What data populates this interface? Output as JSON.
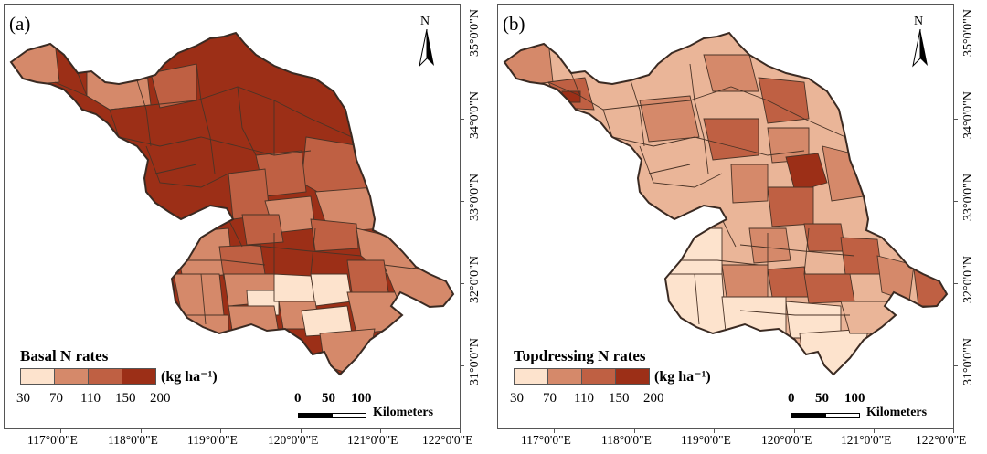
{
  "colors": {
    "c1": "#fde3cd",
    "c2": "#d5896a",
    "c3": "#bf6043",
    "c4": "#9c2f17",
    "border": "#4a3326"
  },
  "panels": [
    {
      "label": "(a)",
      "legend_title": "Basal N rates",
      "legend_unit": "(kg ha⁻¹)",
      "legend_ticks": [
        "30",
        "70",
        "110",
        "150",
        "200"
      ],
      "north": "N",
      "scale_numbers": [
        "0",
        "50",
        "100"
      ],
      "scale_unit": "Kilometers",
      "lat_labels": [
        "35°0'0\"N",
        "34°0'0\"N",
        "33°0'0\"N",
        "32°0'0\"N",
        "31°0'0\"N"
      ],
      "lon_labels": [
        "117°0'0\"E",
        "118°0'0\"E",
        "119°0'0\"E",
        "120°0'0\"E",
        "121°0'0\"E",
        "122°0'0\"E"
      ]
    },
    {
      "label": "(b)",
      "legend_title": "Topdressing N rates",
      "legend_unit": "(kg ha⁻¹)",
      "legend_ticks": [
        "30",
        "70",
        "110",
        "150",
        "200"
      ],
      "north": "N",
      "scale_numbers": [
        "0",
        "50",
        "100"
      ],
      "scale_unit": "Kilometers",
      "lat_labels": [
        "35°0'0\"N",
        "34°0'0\"N",
        "33°0'0\"N",
        "32°0'0\"N",
        "31°0'0\"N"
      ],
      "lon_labels": [
        "117°0'0\"E",
        "118°0'0\"E",
        "119°0'0\"E",
        "120°0'0\"E",
        "121°0'0\"E",
        "122°0'0\"E"
      ]
    }
  ]
}
